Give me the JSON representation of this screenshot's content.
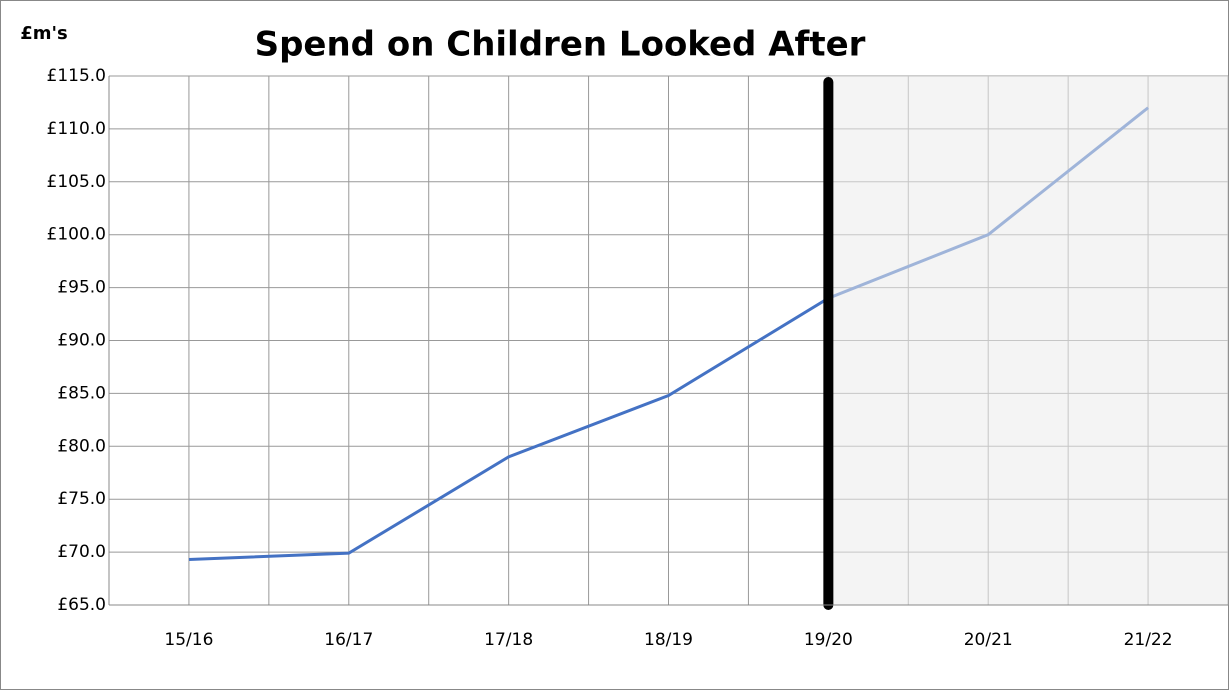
{
  "chart_data": {
    "type": "line",
    "title": "Spend on Children Looked After",
    "y_label": "£m's",
    "categories": [
      "15/16",
      "16/17",
      "17/18",
      "18/19",
      "19/20",
      "20/21",
      "21/22"
    ],
    "series": [
      {
        "name": "Spend",
        "color": "#4472c4",
        "values": [
          69.3,
          69.9,
          79.0,
          84.8,
          94.0,
          100.0,
          112.0
        ]
      }
    ],
    "ylim": [
      65,
      115
    ],
    "yticks": [
      {
        "value": 65,
        "label": "£65.0"
      },
      {
        "value": 70,
        "label": "£70.0"
      },
      {
        "value": 75,
        "label": "£75.0"
      },
      {
        "value": 80,
        "label": "£80.0"
      },
      {
        "value": 85,
        "label": "£85.0"
      },
      {
        "value": 90,
        "label": "£90.0"
      },
      {
        "value": 95,
        "label": "£95.0"
      },
      {
        "value": 100,
        "label": "£100.0"
      },
      {
        "value": 105,
        "label": "£105.0"
      },
      {
        "value": 110,
        "label": "£110.0"
      },
      {
        "value": 115,
        "label": "£115.0"
      }
    ],
    "grid": true,
    "divider_at": "19/20"
  }
}
